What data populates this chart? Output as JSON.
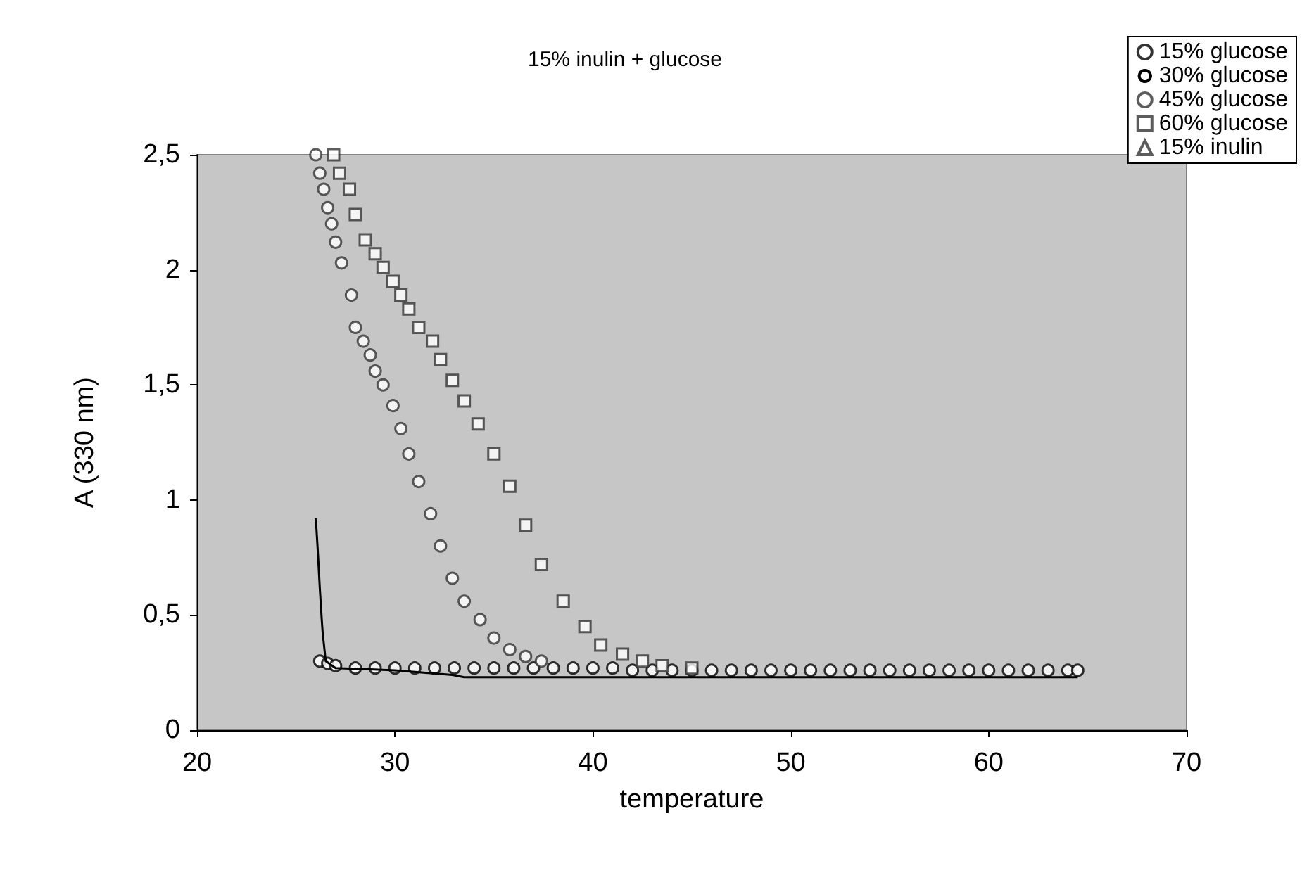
{
  "chart_data": {
    "type": "scatter",
    "title": "15% inulin + glucose",
    "xlabel": "temperature",
    "ylabel": "A (330 nm)",
    "xlim": [
      20,
      70
    ],
    "xticks": [
      20,
      30,
      40,
      50,
      60,
      70
    ],
    "ylim": [
      0,
      2.5
    ],
    "yticks": [
      0,
      {
        "value": 0.5,
        "label": "0,5"
      },
      1,
      {
        "value": 1.5,
        "label": "1,5"
      },
      2,
      {
        "value": 2.5,
        "label": "2,5"
      }
    ],
    "grid": false,
    "legend": "top right",
    "series": [
      {
        "name": "15% glucose",
        "color": "#000000",
        "marker": "circle",
        "x": [
          26.2,
          26.6,
          27,
          28,
          29,
          30,
          31,
          32,
          33,
          34,
          35,
          36,
          37,
          38,
          39,
          40,
          41,
          42,
          43,
          44,
          45,
          46,
          47,
          48,
          49,
          50,
          51,
          52,
          53,
          54,
          55,
          56,
          57,
          58,
          59,
          60,
          61,
          62,
          63,
          64,
          64.5
        ],
        "values": [
          0.3,
          0.29,
          0.28,
          0.27,
          0.27,
          0.27,
          0.27,
          0.27,
          0.27,
          0.27,
          0.27,
          0.27,
          0.27,
          0.27,
          0.27,
          0.27,
          0.27,
          0.26,
          0.26,
          0.26,
          0.26,
          0.26,
          0.26,
          0.26,
          0.26,
          0.26,
          0.26,
          0.26,
          0.26,
          0.26,
          0.26,
          0.26,
          0.26,
          0.26,
          0.26,
          0.26,
          0.26,
          0.26,
          0.26,
          0.26,
          0.26
        ]
      },
      {
        "name": "30% glucose",
        "type": "line",
        "color": "#000000",
        "marker": "none",
        "x": [
          26.0,
          26.05,
          26.1,
          26.15,
          26.2,
          26.25,
          26.3,
          26.35,
          26.4,
          26.5,
          27,
          30,
          32.9,
          33.5,
          36,
          40,
          44,
          48,
          52,
          56,
          60,
          64.5
        ],
        "values": [
          0.92,
          0.85,
          0.78,
          0.7,
          0.62,
          0.55,
          0.48,
          0.42,
          0.38,
          0.3,
          0.27,
          0.26,
          0.24,
          0.23,
          0.23,
          0.23,
          0.23,
          0.23,
          0.23,
          0.23,
          0.23,
          0.23
        ]
      },
      {
        "name": "45% glucose",
        "color": "#333333",
        "marker": "circle",
        "x": [
          26.0,
          26.2,
          26.4,
          26.6,
          26.8,
          27.0,
          27.3,
          27.8,
          28.0,
          28.4,
          28.75,
          29.0,
          29.4,
          29.9,
          30.3,
          30.7,
          31.2,
          31.8,
          32.3,
          32.9,
          33.5,
          34.3,
          35.0,
          35.8,
          36.6,
          37.4
        ],
        "values": [
          2.5,
          2.42,
          2.35,
          2.27,
          2.2,
          2.12,
          2.03,
          1.89,
          1.75,
          1.69,
          1.63,
          1.56,
          1.5,
          1.41,
          1.31,
          1.2,
          1.08,
          0.94,
          0.8,
          0.66,
          0.56,
          0.48,
          0.4,
          0.35,
          0.32,
          0.3
        ]
      },
      {
        "name": "60% glucose",
        "color": "#333333",
        "marker": "square",
        "x": [
          26.9,
          27.2,
          27.7,
          28.0,
          28.5,
          29.0,
          29.4,
          29.9,
          30.3,
          30.7,
          31.2,
          31.9,
          32.3,
          32.9,
          33.5,
          34.2,
          35.0,
          35.8,
          36.6,
          37.4,
          38.5,
          39.6,
          40.4,
          41.5,
          42.5,
          43.5,
          45
        ],
        "values": [
          2.5,
          2.42,
          2.35,
          2.24,
          2.13,
          2.07,
          2.01,
          1.95,
          1.89,
          1.83,
          1.75,
          1.69,
          1.61,
          1.52,
          1.43,
          1.33,
          1.2,
          1.06,
          0.89,
          0.72,
          0.56,
          0.45,
          0.37,
          0.33,
          0.3,
          0.28,
          0.27
        ]
      },
      {
        "name": "15% inulin",
        "color": "#333333",
        "marker": "triangle"
      }
    ]
  }
}
